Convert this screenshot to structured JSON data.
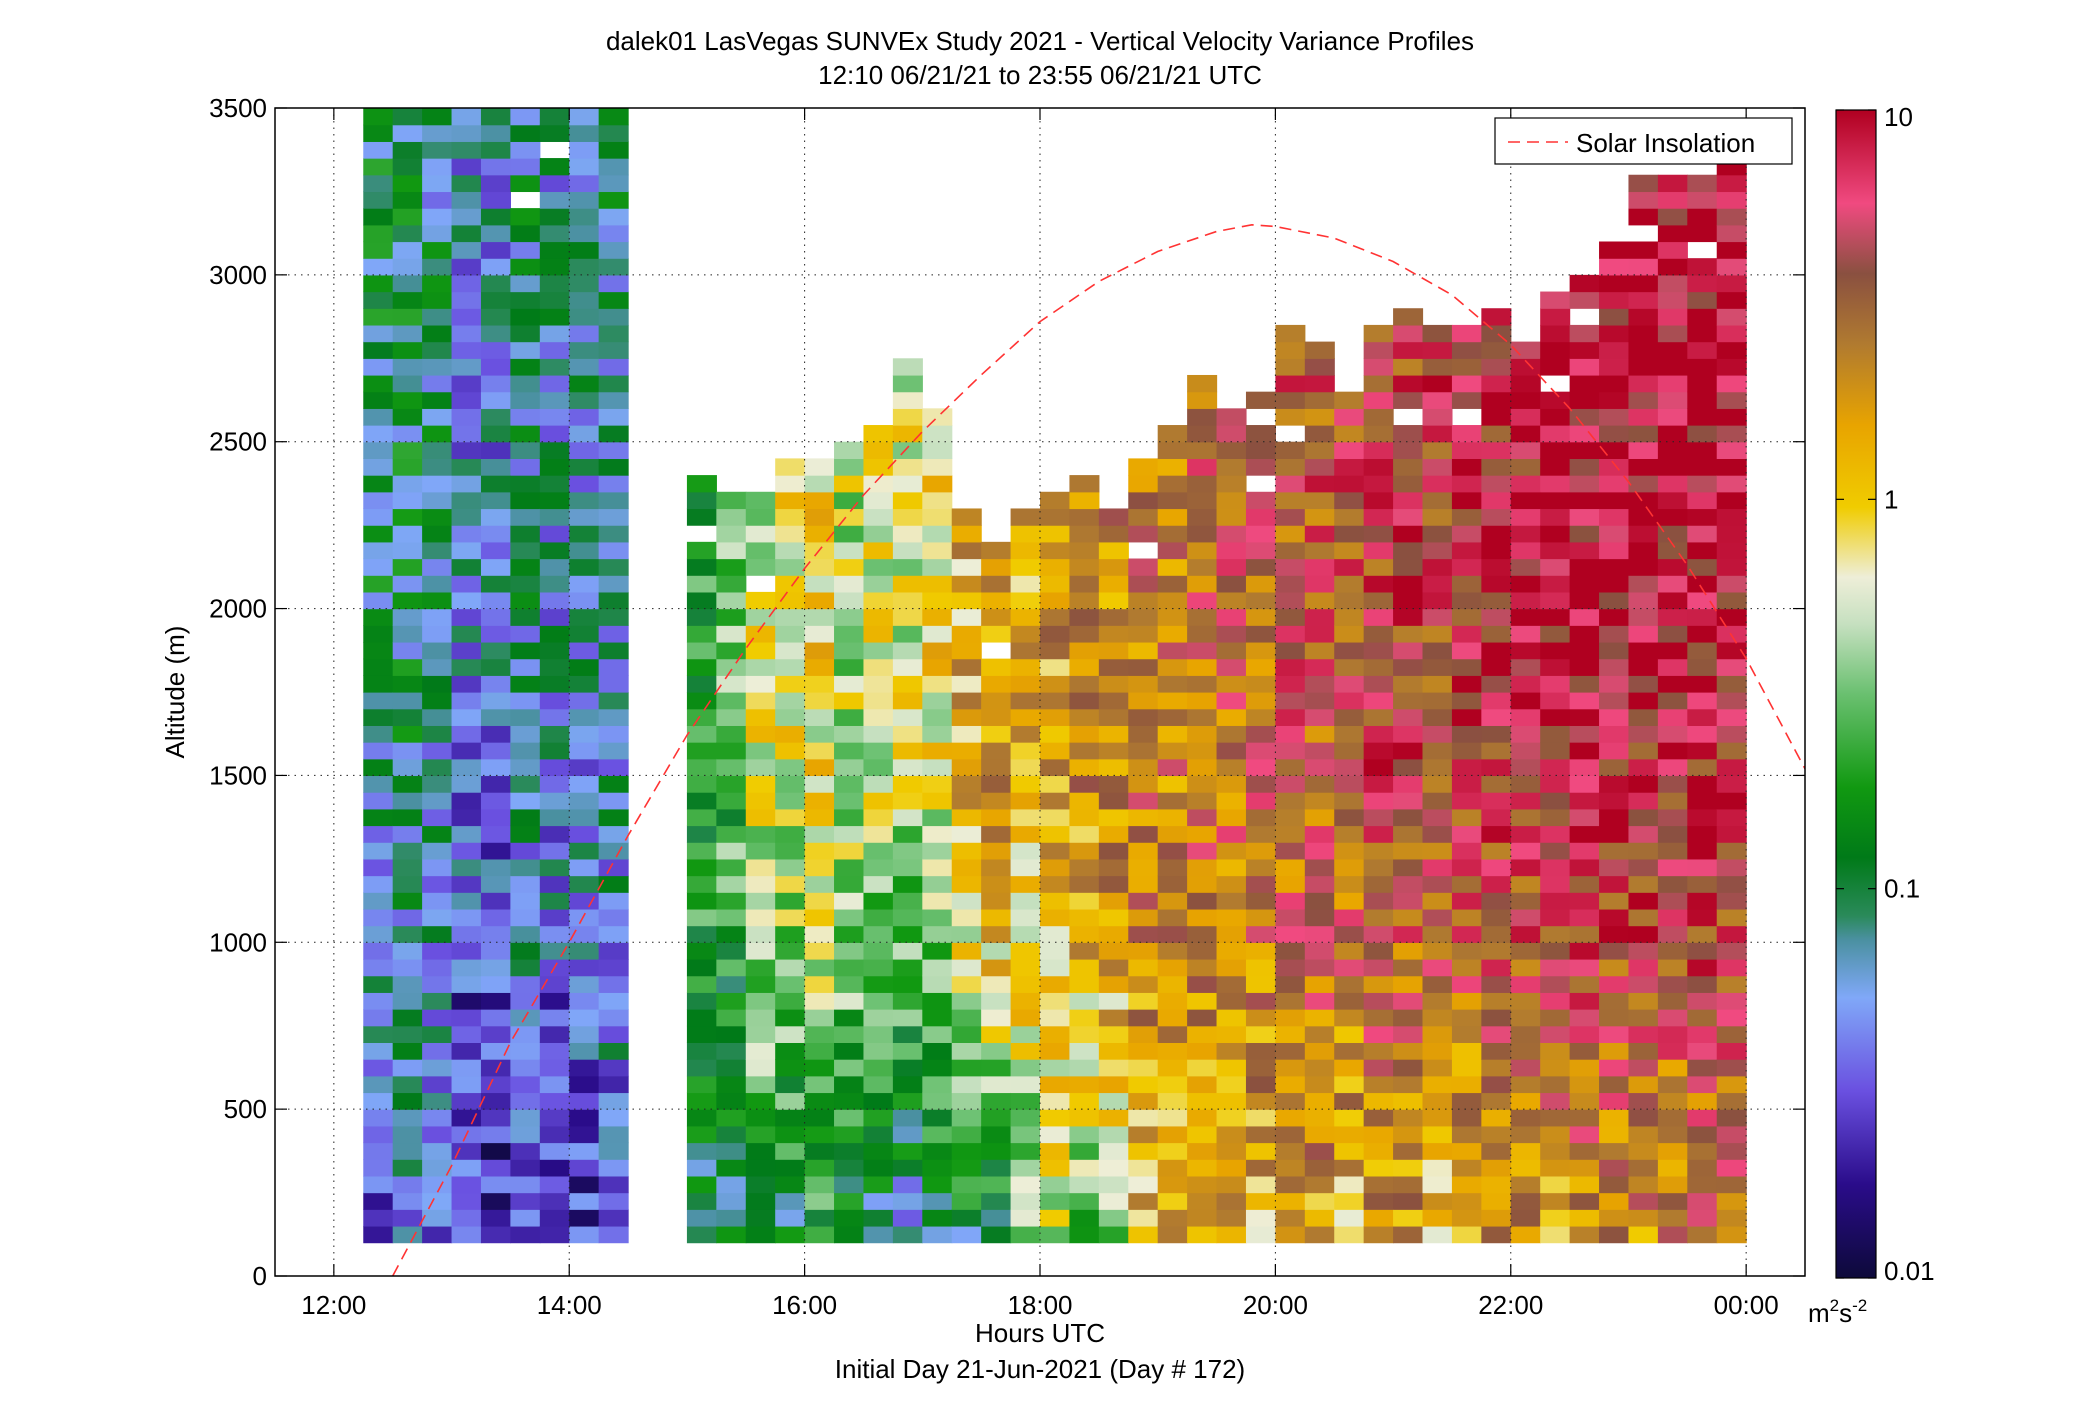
{
  "chart_data": {
    "type": "heatmap",
    "title": "dalek01 LasVegas SUNVEx Study 2021 - Vertical Velocity Variance Profiles",
    "subtitle": "12:10 06/21/21 to 23:55 06/21/21  UTC",
    "xlabel": "Hours UTC",
    "xlabel2": "Initial Day 21-Jun-2021 (Day # 172)",
    "ylabel": "Altitude (m)",
    "xlim": [
      11.5,
      24.5
    ],
    "ylim": [
      0,
      3500
    ],
    "xticks": [
      12,
      14,
      16,
      18,
      20,
      22,
      24
    ],
    "xtick_labels": [
      "12:00",
      "14:00",
      "16:00",
      "18:00",
      "20:00",
      "22:00",
      "00:00"
    ],
    "yticks": [
      0,
      500,
      1000,
      1500,
      2000,
      2500,
      3000,
      3500
    ],
    "ytick_labels": [
      "0",
      "500",
      "1000",
      "1500",
      "2000",
      "2500",
      "3000",
      "3500"
    ],
    "grid": true,
    "legend": {
      "position": "top-right",
      "entries": [
        {
          "label": "Solar Insolation",
          "color": "#ff3333",
          "style": "dashed"
        }
      ]
    },
    "colorbar": {
      "scale": "log",
      "range": [
        0.01,
        10
      ],
      "ticks": [
        0.01,
        0.1,
        1,
        10
      ],
      "tick_labels": [
        "0.01",
        "0.1",
        "1",
        "10"
      ],
      "units_base": "m",
      "units_sup1": "2",
      "units_mid": "s",
      "units_sup2": "-2",
      "stops": [
        {
          "v": 0.0,
          "c": "#0d0a3a"
        },
        {
          "v": 0.08,
          "c": "#2a0c8a"
        },
        {
          "v": 0.16,
          "c": "#6a50e0"
        },
        {
          "v": 0.24,
          "c": "#80a8f8"
        },
        {
          "v": 0.29,
          "c": "#4a90a0"
        },
        {
          "v": 0.31,
          "c": "#2a8a5a"
        },
        {
          "v": 0.36,
          "c": "#007a18"
        },
        {
          "v": 0.42,
          "c": "#119911"
        },
        {
          "v": 0.5,
          "c": "#6ac070"
        },
        {
          "v": 0.56,
          "c": "#c6e0c0"
        },
        {
          "v": 0.6,
          "c": "#eeeed8"
        },
        {
          "v": 0.66,
          "c": "#f0cc00"
        },
        {
          "v": 0.73,
          "c": "#e8a400"
        },
        {
          "v": 0.8,
          "c": "#b07a30"
        },
        {
          "v": 0.86,
          "c": "#8a5040"
        },
        {
          "v": 0.92,
          "c": "#f04a80"
        },
        {
          "v": 1.0,
          "c": "#b00020"
        }
      ]
    },
    "time_start": 12.25,
    "time_step": 0.25,
    "alt_start": 100,
    "alt_step": 50,
    "columns": [
      {
        "top": 3500,
        "lo": -1.8,
        "hi": -1.0
      },
      {
        "top": 3500,
        "lo": -1.5,
        "hi": -1.0
      },
      {
        "top": 3500,
        "lo": -1.7,
        "hi": -1.1
      },
      {
        "top": 3500,
        "lo": -1.9,
        "hi": -1.3
      },
      {
        "top": 3500,
        "lo": -1.9,
        "hi": -1.3
      },
      {
        "top": 3500,
        "lo": -1.6,
        "hi": -1.1
      },
      {
        "top": 3500,
        "lo": -1.8,
        "hi": -1.2
      },
      {
        "top": 3500,
        "lo": -1.9,
        "hi": -1.2
      },
      {
        "top": 3500,
        "lo": -1.6,
        "hi": -1.1
      },
      {
        "top": null,
        "lo": 0,
        "hi": 0
      },
      {
        "top": null,
        "lo": 0,
        "hi": 0
      },
      {
        "top": 2400,
        "lo": -1.4,
        "hi": -0.7
      },
      {
        "top": 2400,
        "lo": -1.3,
        "hi": -0.6
      },
      {
        "top": 2350,
        "lo": -1.2,
        "hi": -0.2
      },
      {
        "top": 2450,
        "lo": -1.4,
        "hi": -0.2
      },
      {
        "top": 2500,
        "lo": -1.2,
        "hi": -0.1
      },
      {
        "top": 2500,
        "lo": -1.3,
        "hi": -0.3
      },
      {
        "top": 2550,
        "lo": -1.7,
        "hi": -0.2
      },
      {
        "top": 2750,
        "lo": -1.8,
        "hi": -0.2
      },
      {
        "top": 2600,
        "lo": -1.7,
        "hi": -0.1
      },
      {
        "top": 2300,
        "lo": -1.7,
        "hi": 0.1
      },
      {
        "top": 2200,
        "lo": -1.5,
        "hi": 0.2
      },
      {
        "top": 2300,
        "lo": -1.0,
        "hi": 0.1
      },
      {
        "top": 2350,
        "lo": -0.6,
        "hi": 0.2
      },
      {
        "top": 2400,
        "lo": -1.0,
        "hi": 0.3
      },
      {
        "top": 2300,
        "lo": -0.7,
        "hi": 0.3
      },
      {
        "top": 2450,
        "lo": -0.1,
        "hi": 0.4
      },
      {
        "top": 2550,
        "lo": -0.1,
        "hi": 0.4
      },
      {
        "top": 2700,
        "lo": -0.1,
        "hi": 0.5
      },
      {
        "top": 2600,
        "lo": -0.1,
        "hi": 0.5
      },
      {
        "top": 2650,
        "lo": -0.1,
        "hi": 0.5
      },
      {
        "top": 2850,
        "lo": 0.0,
        "hi": 0.6
      },
      {
        "top": 2800,
        "lo": 0.0,
        "hi": 0.6
      },
      {
        "top": 2650,
        "lo": -0.2,
        "hi": 0.6
      },
      {
        "top": 2850,
        "lo": 0.0,
        "hi": 0.7
      },
      {
        "top": 2900,
        "lo": 0.0,
        "hi": 0.7
      },
      {
        "top": 2850,
        "lo": -0.3,
        "hi": 0.7
      },
      {
        "top": 2850,
        "lo": -0.3,
        "hi": 0.8
      },
      {
        "top": 2900,
        "lo": 0.0,
        "hi": 0.8
      },
      {
        "top": 2850,
        "lo": 0.0,
        "hi": 0.8
      },
      {
        "top": 2950,
        "lo": -0.2,
        "hi": 0.9
      },
      {
        "top": 3000,
        "lo": 0.0,
        "hi": 0.9
      },
      {
        "top": 3100,
        "lo": 0.0,
        "hi": 0.9
      },
      {
        "top": 3300,
        "lo": 0.0,
        "hi": 0.9
      },
      {
        "top": 3300,
        "lo": 0.0,
        "hi": 0.9
      },
      {
        "top": 3300,
        "lo": 0.1,
        "hi": 0.9
      },
      {
        "top": 3350,
        "lo": 0.1,
        "hi": 0.9
      }
    ],
    "solar_insolation_curve": [
      {
        "x": 12.5,
        "y": 0
      },
      {
        "x": 13.0,
        "y": 330
      },
      {
        "x": 13.5,
        "y": 700
      },
      {
        "x": 14.0,
        "y": 1000
      },
      {
        "x": 14.5,
        "y": 1320
      },
      {
        "x": 15.0,
        "y": 1620
      },
      {
        "x": 15.5,
        "y": 1880
      },
      {
        "x": 16.0,
        "y": 2120
      },
      {
        "x": 16.5,
        "y": 2340
      },
      {
        "x": 17.0,
        "y": 2530
      },
      {
        "x": 17.5,
        "y": 2700
      },
      {
        "x": 18.0,
        "y": 2860
      },
      {
        "x": 18.5,
        "y": 2980
      },
      {
        "x": 19.0,
        "y": 3070
      },
      {
        "x": 19.5,
        "y": 3130
      },
      {
        "x": 19.8,
        "y": 3150
      },
      {
        "x": 20.0,
        "y": 3145
      },
      {
        "x": 20.5,
        "y": 3110
      },
      {
        "x": 21.0,
        "y": 3040
      },
      {
        "x": 21.5,
        "y": 2940
      },
      {
        "x": 22.0,
        "y": 2790
      },
      {
        "x": 22.5,
        "y": 2600
      },
      {
        "x": 23.0,
        "y": 2380
      },
      {
        "x": 23.5,
        "y": 2130
      },
      {
        "x": 24.0,
        "y": 1850
      },
      {
        "x": 24.5,
        "y": 1520
      }
    ]
  }
}
